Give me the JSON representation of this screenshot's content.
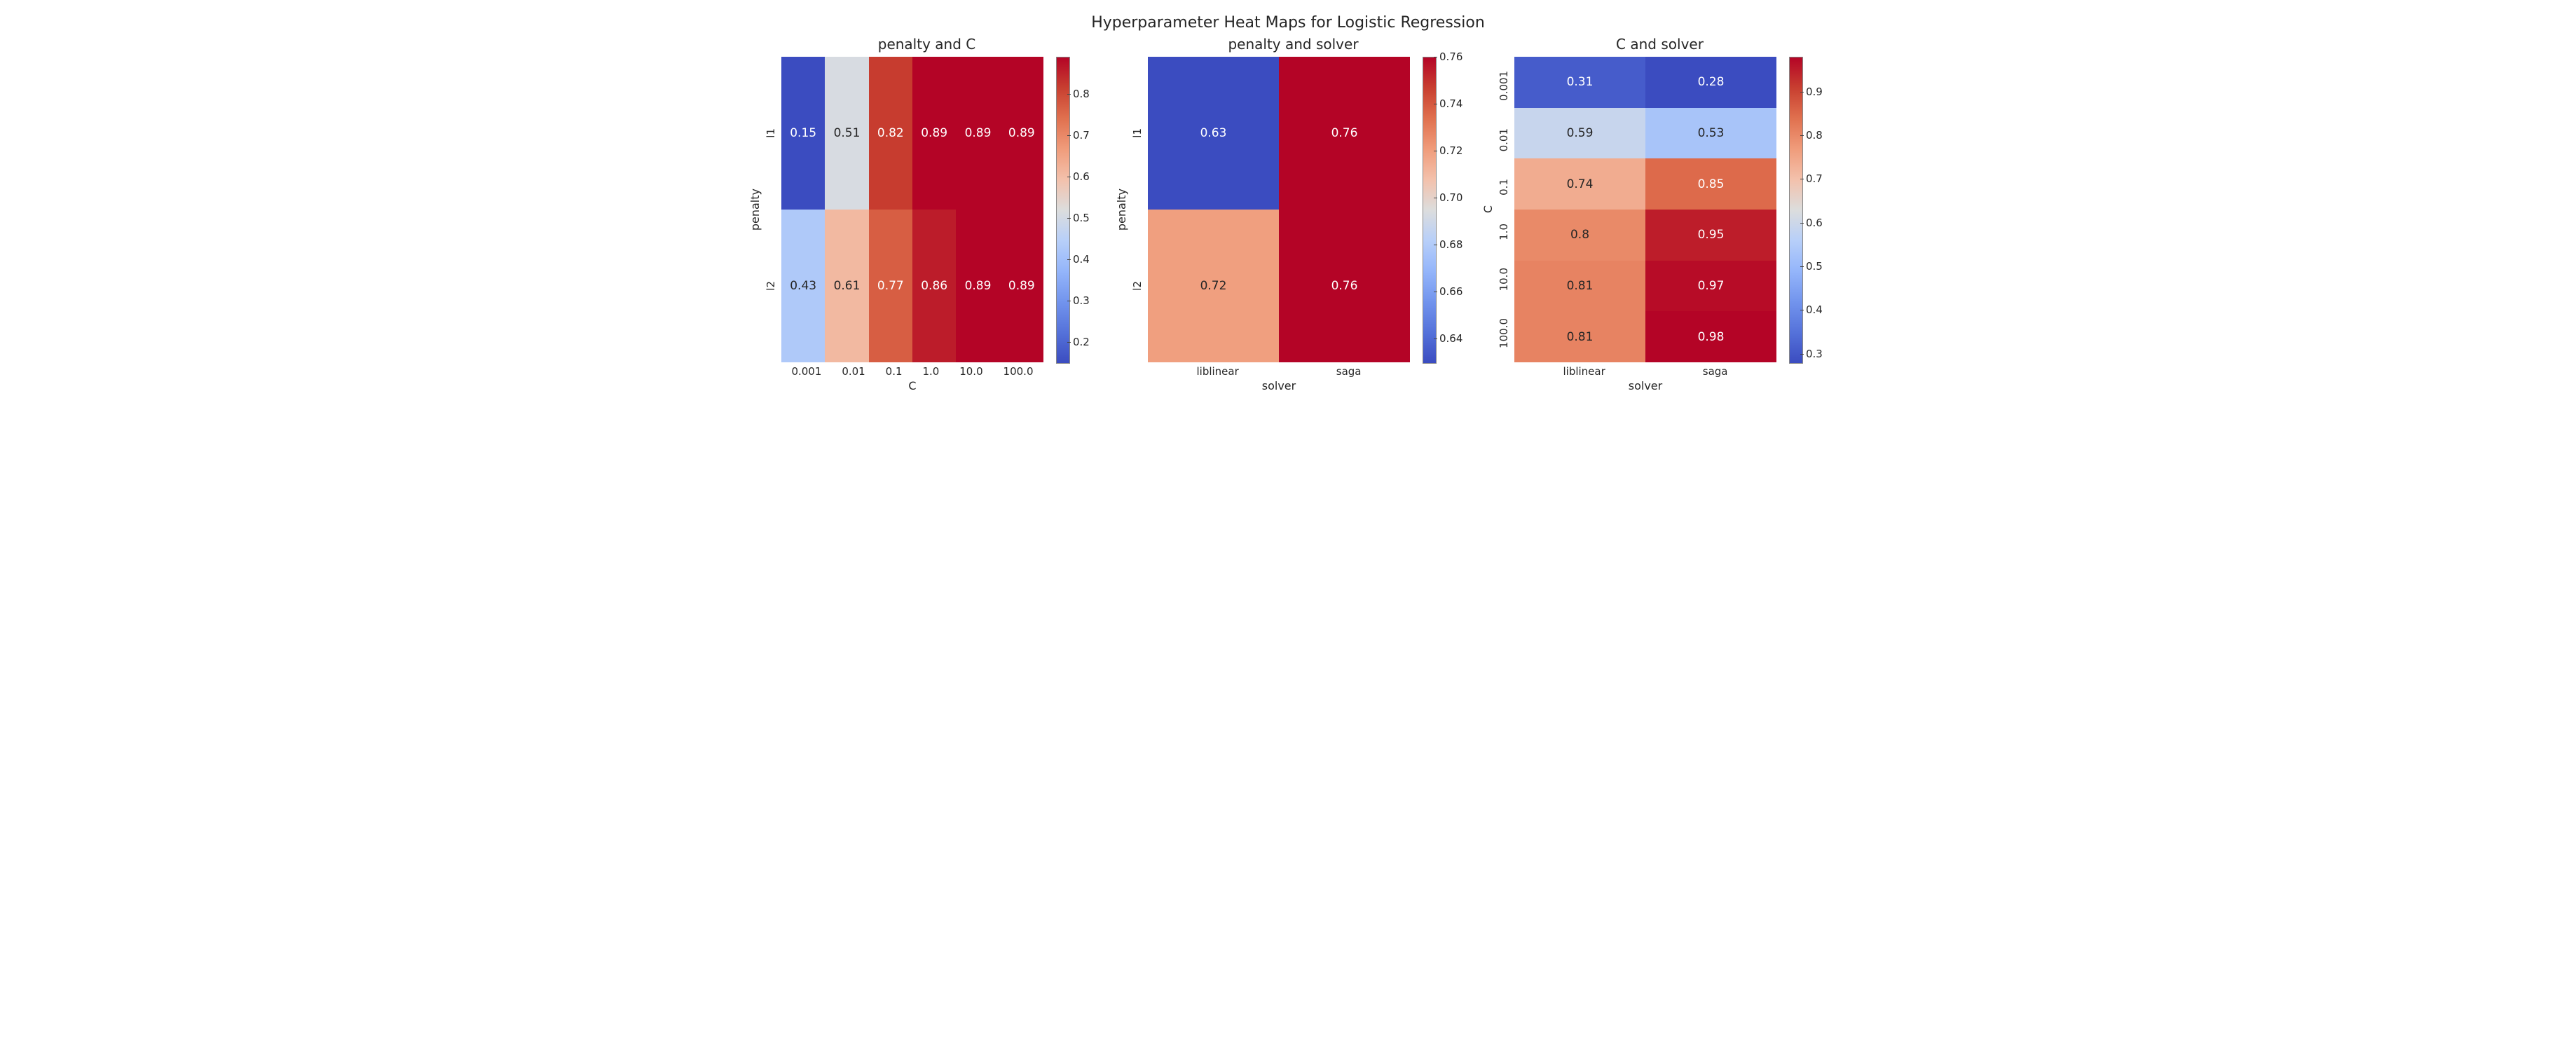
{
  "suptitle": "Hyperparameter Heat Maps for Logistic Regression",
  "colormap": {
    "stops": [
      [
        0.0,
        "#3b4cc0"
      ],
      [
        0.1,
        "#5572da"
      ],
      [
        0.2,
        "#7294ed"
      ],
      [
        0.3,
        "#94b5fa"
      ],
      [
        0.4,
        "#b7cff9"
      ],
      [
        0.5,
        "#dcdddd"
      ],
      [
        0.6,
        "#f3c1ac"
      ],
      [
        0.7,
        "#f09c7b"
      ],
      [
        0.8,
        "#e0714f"
      ],
      [
        0.9,
        "#c83f30"
      ],
      [
        1.0,
        "#b40426"
      ]
    ]
  },
  "panels": [
    {
      "title": "penalty and C",
      "xlabel": "C",
      "ylabel": "penalty",
      "xticks": [
        "0.001",
        "0.01",
        "0.1",
        "1.0",
        "10.0",
        "100.0"
      ],
      "yticks": [
        "l1",
        "l2"
      ],
      "heatW": 374,
      "heatH": 436,
      "ncols": 6,
      "nrows": 2,
      "vmin": 0.15,
      "vmax": 0.89,
      "cells": [
        {
          "v": 0.15,
          "label": "0.15",
          "textcolor": "#ffffff"
        },
        {
          "v": 0.51,
          "label": "0.51",
          "textcolor": "#262626"
        },
        {
          "v": 0.82,
          "label": "0.82",
          "textcolor": "#ffffff"
        },
        {
          "v": 0.89,
          "label": "0.89",
          "textcolor": "#ffffff"
        },
        {
          "v": 0.89,
          "label": "0.89",
          "textcolor": "#ffffff"
        },
        {
          "v": 0.89,
          "label": "0.89",
          "textcolor": "#ffffff"
        },
        {
          "v": 0.43,
          "label": "0.43",
          "textcolor": "#262626"
        },
        {
          "v": 0.61,
          "label": "0.61",
          "textcolor": "#262626"
        },
        {
          "v": 0.77,
          "label": "0.77",
          "textcolor": "#ffffff"
        },
        {
          "v": 0.86,
          "label": "0.86",
          "textcolor": "#ffffff"
        },
        {
          "v": 0.89,
          "label": "0.89",
          "textcolor": "#ffffff"
        },
        {
          "v": 0.89,
          "label": "0.89",
          "textcolor": "#ffffff"
        }
      ],
      "cbar_ticks": [
        0.2,
        0.3,
        0.4,
        0.5,
        0.6,
        0.7,
        0.8
      ],
      "cbar_tick_labels": [
        "0.2",
        "0.3",
        "0.4",
        "0.5",
        "0.6",
        "0.7",
        "0.8"
      ]
    },
    {
      "title": "penalty and solver",
      "xlabel": "solver",
      "ylabel": "penalty",
      "xticks": [
        "liblinear",
        "saga"
      ],
      "yticks": [
        "l1",
        "l2"
      ],
      "heatW": 374,
      "heatH": 436,
      "ncols": 2,
      "nrows": 2,
      "vmin": 0.63,
      "vmax": 0.76,
      "cells": [
        {
          "v": 0.63,
          "label": "0.63",
          "textcolor": "#ffffff"
        },
        {
          "v": 0.76,
          "label": "0.76",
          "textcolor": "#ffffff"
        },
        {
          "v": 0.72,
          "label": "0.72",
          "textcolor": "#262626"
        },
        {
          "v": 0.76,
          "label": "0.76",
          "textcolor": "#ffffff"
        }
      ],
      "cbar_ticks": [
        0.64,
        0.66,
        0.68,
        0.7,
        0.72,
        0.74,
        0.76
      ],
      "cbar_tick_labels": [
        "0.64",
        "0.66",
        "0.68",
        "0.70",
        "0.72",
        "0.74",
        "0.76"
      ]
    },
    {
      "title": "C and solver",
      "xlabel": "solver",
      "ylabel": "C",
      "xticks": [
        "liblinear",
        "saga"
      ],
      "yticks": [
        "0.001",
        "0.01",
        "0.1",
        "1.0",
        "10.0",
        "100.0"
      ],
      "heatW": 374,
      "heatH": 436,
      "ncols": 2,
      "nrows": 6,
      "vmin": 0.28,
      "vmax": 0.98,
      "cells": [
        {
          "v": 0.31,
          "label": "0.31",
          "textcolor": "#ffffff"
        },
        {
          "v": 0.28,
          "label": "0.28",
          "textcolor": "#ffffff"
        },
        {
          "v": 0.59,
          "label": "0.59",
          "textcolor": "#262626"
        },
        {
          "v": 0.53,
          "label": "0.53",
          "textcolor": "#262626"
        },
        {
          "v": 0.74,
          "label": "0.74",
          "textcolor": "#262626"
        },
        {
          "v": 0.85,
          "label": "0.85",
          "textcolor": "#ffffff"
        },
        {
          "v": 0.8,
          "label": "0.8",
          "textcolor": "#262626"
        },
        {
          "v": 0.95,
          "label": "0.95",
          "textcolor": "#ffffff"
        },
        {
          "v": 0.81,
          "label": "0.81",
          "textcolor": "#262626"
        },
        {
          "v": 0.97,
          "label": "0.97",
          "textcolor": "#ffffff"
        },
        {
          "v": 0.81,
          "label": "0.81",
          "textcolor": "#262626"
        },
        {
          "v": 0.98,
          "label": "0.98",
          "textcolor": "#ffffff"
        }
      ],
      "cbar_ticks": [
        0.3,
        0.4,
        0.5,
        0.6,
        0.7,
        0.8,
        0.9
      ],
      "cbar_tick_labels": [
        "0.3",
        "0.4",
        "0.5",
        "0.6",
        "0.7",
        "0.8",
        "0.9"
      ]
    }
  ]
}
